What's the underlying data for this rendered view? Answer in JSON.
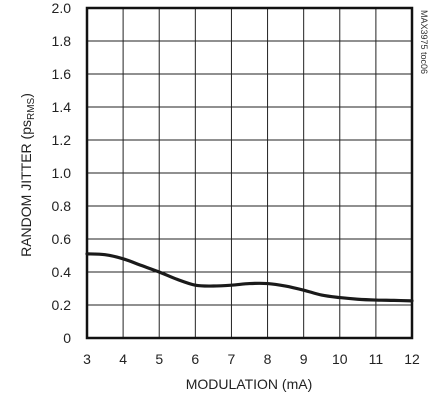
{
  "chart_data": {
    "type": "line",
    "title": "",
    "xlabel": "MODULATION (mA)",
    "ylabel_main": "RANDOM JITTER (ps",
    "ylabel_sub": "RMS",
    "ylabel_end": ")",
    "side_note": "MAX3975 toc06",
    "xlim": [
      3,
      12
    ],
    "ylim": [
      0,
      2.0
    ],
    "x_ticks": [
      3,
      4,
      5,
      6,
      7,
      8,
      9,
      10,
      11,
      12
    ],
    "y_ticks": [
      0,
      0.2,
      0.4,
      0.6,
      0.8,
      1.0,
      1.2,
      1.4,
      1.6,
      1.8,
      2.0
    ],
    "x_tick_labels": [
      "3",
      "4",
      "5",
      "6",
      "7",
      "8",
      "9",
      "10",
      "11",
      "12"
    ],
    "y_tick_labels": [
      "0",
      "0.2",
      "0.4",
      "0.6",
      "0.8",
      "1.0",
      "1.2",
      "1.4",
      "1.6",
      "1.8",
      "2.0"
    ],
    "grid": true,
    "series": [
      {
        "x": [
          3,
          3.5,
          4,
          4.5,
          5,
          5.5,
          6,
          6.5,
          7,
          7.5,
          8,
          8.5,
          9,
          9.5,
          10,
          10.5,
          11,
          11.5,
          12
        ],
        "y": [
          0.51,
          0.505,
          0.48,
          0.44,
          0.4,
          0.355,
          0.32,
          0.315,
          0.32,
          0.33,
          0.33,
          0.315,
          0.29,
          0.26,
          0.245,
          0.235,
          0.23,
          0.228,
          0.225
        ]
      }
    ]
  }
}
